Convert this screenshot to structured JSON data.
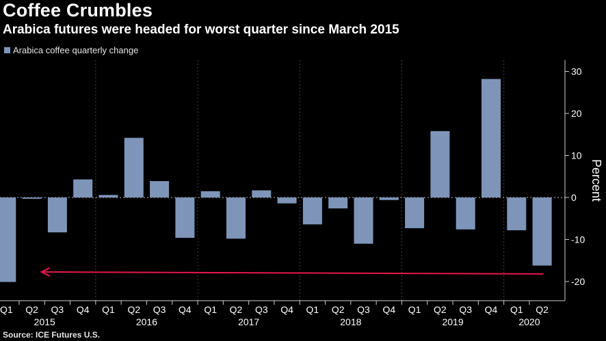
{
  "title": "Coffee Crumbles",
  "subtitle": "Arabica futures were headed for worst quarter since March 2015",
  "source": "Source: ICE Futures U.S.",
  "colors": {
    "bar": "#7e95b9",
    "arrow": "#e8174b",
    "grid": "#444444",
    "axis": "#cfcfcf"
  },
  "chart_data": {
    "type": "bar",
    "ylabel": "Percent",
    "ylim": [
      -23,
      32
    ],
    "yticks": [
      30,
      20,
      10,
      0,
      -10,
      -20
    ],
    "grid": "vertical-dashed",
    "legend_position": "top-left",
    "categories": [
      "Q1",
      "Q2",
      "Q3",
      "Q4",
      "Q1",
      "Q2",
      "Q3",
      "Q4",
      "Q1",
      "Q2",
      "Q3",
      "Q4",
      "Q1",
      "Q2",
      "Q3",
      "Q4",
      "Q1",
      "Q2",
      "Q3",
      "Q4",
      "Q1",
      "Q2"
    ],
    "years": [
      {
        "label": "2015",
        "start": 0,
        "end": 3
      },
      {
        "label": "2016",
        "start": 4,
        "end": 7
      },
      {
        "label": "2017",
        "start": 8,
        "end": 11
      },
      {
        "label": "2018",
        "start": 12,
        "end": 15
      },
      {
        "label": "2019",
        "start": 16,
        "end": 19
      },
      {
        "label": "2020",
        "start": 20,
        "end": 21
      }
    ],
    "series": [
      {
        "name": "Arabica coffee quarterly change",
        "values": [
          -20.1,
          -0.3,
          -8.3,
          4.3,
          0.6,
          14.2,
          3.9,
          -9.6,
          1.5,
          -9.8,
          1.7,
          -1.4,
          -6.4,
          -2.6,
          -11.0,
          -0.6,
          -7.3,
          15.8,
          -7.6,
          28.2,
          -7.8,
          -16.2
        ]
      }
    ],
    "annotations": [
      {
        "type": "arrow",
        "from": {
          "x_index": 21,
          "y": -18.2
        },
        "to": {
          "x_index": -0.5,
          "y": -18.2
        }
      }
    ]
  }
}
